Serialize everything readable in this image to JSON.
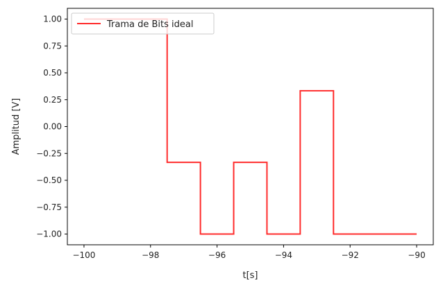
{
  "chart_data": {
    "type": "line",
    "xlabel": "t[s]",
    "ylabel": "Amplitud [V]",
    "xlim": [
      -100.5,
      -89.5
    ],
    "ylim": [
      -1.1,
      1.1
    ],
    "x_ticks": [
      -100,
      -98,
      -96,
      -94,
      -92,
      -90
    ],
    "x_tick_labels": [
      "−100",
      "−98",
      "−96",
      "−94",
      "−92",
      "−90"
    ],
    "y_ticks": [
      1.0,
      0.75,
      0.5,
      0.25,
      0.0,
      -0.25,
      -0.5,
      -0.75,
      -1.0
    ],
    "y_tick_labels": [
      "1.00",
      "0.75",
      "0.50",
      "0.25",
      "0.00",
      "−0.25",
      "−0.50",
      "−0.75",
      "−1.00"
    ],
    "grid": false,
    "legend_position": "top-left",
    "series": [
      {
        "name": "Trama de Bits ideal",
        "color": "#ff2a2a",
        "step": true,
        "x": [
          -100,
          -97.5,
          -97.5,
          -96.5,
          -96.5,
          -95.5,
          -95.5,
          -94.5,
          -94.5,
          -93.5,
          -93.5,
          -92.5,
          -92.5,
          -90
        ],
        "y": [
          1.0,
          1.0,
          -0.333,
          -0.333,
          -1.0,
          -1.0,
          -0.333,
          -0.333,
          -1.0,
          -1.0,
          0.333,
          0.333,
          -1.0,
          -1.0
        ]
      }
    ]
  }
}
